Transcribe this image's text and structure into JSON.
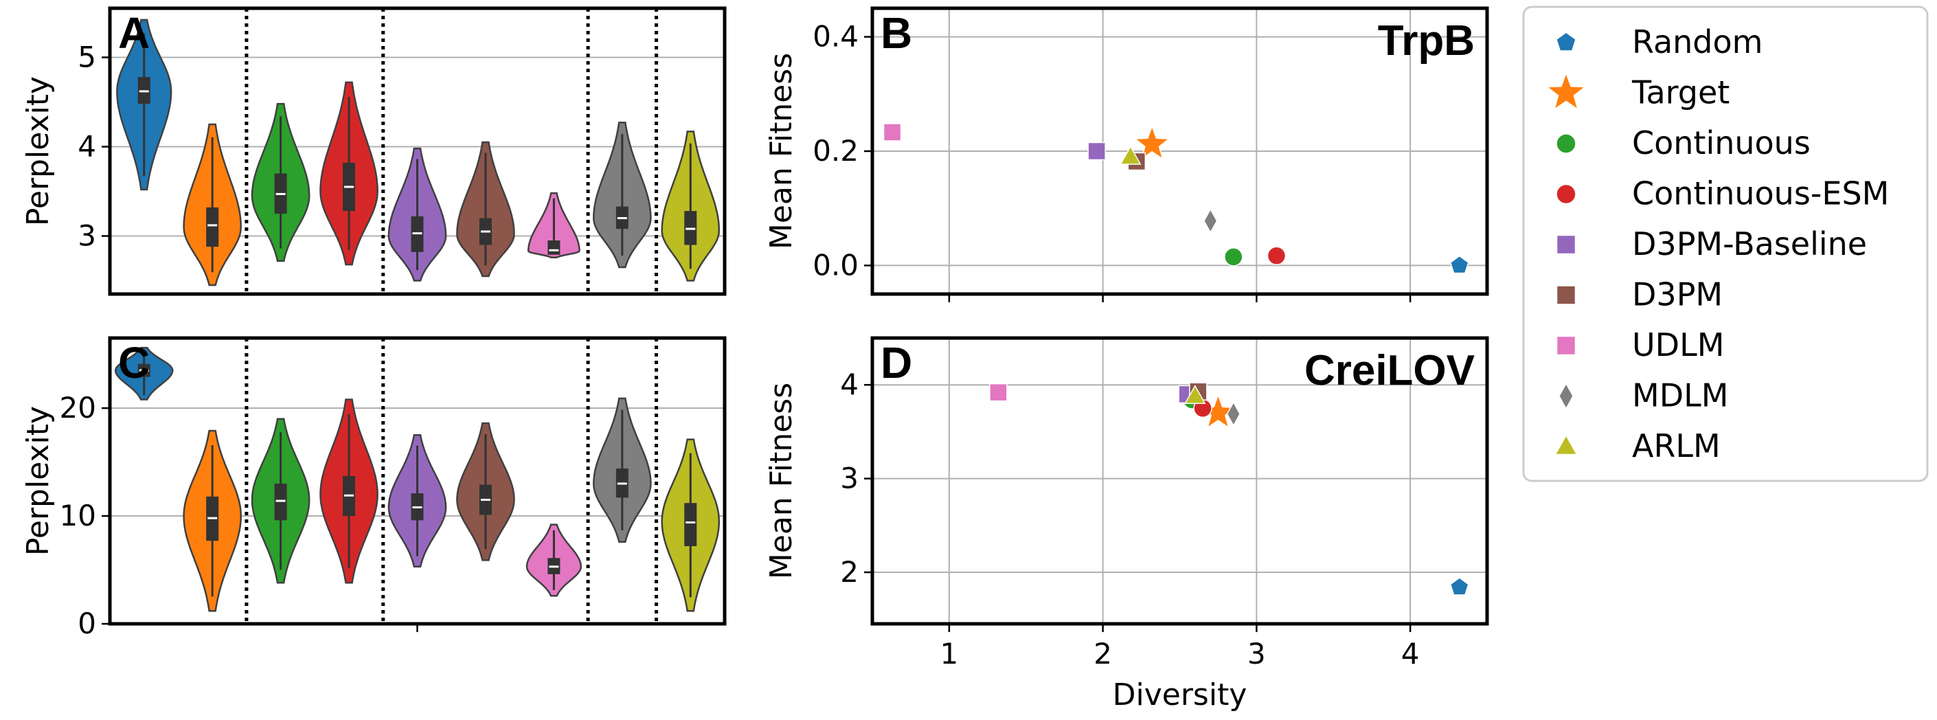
{
  "chart_data": [
    {
      "id": "A",
      "type": "violin",
      "panel_label": "A",
      "ylabel": "Perplexity",
      "ylim": [
        2.35,
        5.55
      ],
      "yticks": [
        3,
        4,
        5
      ],
      "grid": true,
      "separators_after_index": [
        1,
        3,
        6,
        7
      ],
      "violins": [
        {
          "series": "Random",
          "color": "#1f77b4",
          "min": 3.52,
          "max": 5.42,
          "q1": 4.48,
          "median": 4.62,
          "q3": 4.78,
          "mode": 4.62,
          "width": 0.9
        },
        {
          "series": "Target",
          "color": "#ff7f0e",
          "min": 2.45,
          "max": 4.25,
          "q1": 2.88,
          "median": 3.12,
          "q3": 3.32,
          "mode": 3.1,
          "width": 0.95
        },
        {
          "series": "Continuous",
          "color": "#2ca02c",
          "min": 2.72,
          "max": 4.48,
          "q1": 3.25,
          "median": 3.47,
          "q3": 3.7,
          "mode": 3.45,
          "width": 0.95
        },
        {
          "series": "Continuous-ESM",
          "color": "#d62728",
          "min": 2.68,
          "max": 4.72,
          "q1": 3.28,
          "median": 3.55,
          "q3": 3.82,
          "mode": 3.5,
          "width": 0.95
        },
        {
          "series": "D3PM-Baseline",
          "color": "#9467bd",
          "min": 2.5,
          "max": 3.98,
          "q1": 2.82,
          "median": 3.03,
          "q3": 3.22,
          "mode": 3.0,
          "width": 0.95
        },
        {
          "series": "D3PM",
          "color": "#8c564b",
          "min": 2.55,
          "max": 4.05,
          "q1": 2.9,
          "median": 3.05,
          "q3": 3.2,
          "mode": 3.02,
          "width": 0.95
        },
        {
          "series": "UDLM",
          "color": "#e377c2",
          "min": 2.76,
          "max": 3.48,
          "q1": 2.79,
          "median": 2.84,
          "q3": 2.95,
          "mode": 2.83,
          "width": 0.85
        },
        {
          "series": "MDLM",
          "color": "#7f7f7f",
          "min": 2.65,
          "max": 4.27,
          "q1": 3.08,
          "median": 3.2,
          "q3": 3.33,
          "mode": 3.2,
          "width": 0.95
        },
        {
          "series": "ARLM",
          "color": "#bcbd22",
          "min": 2.5,
          "max": 4.17,
          "q1": 2.9,
          "median": 3.08,
          "q3": 3.28,
          "mode": 3.06,
          "width": 0.95
        }
      ]
    },
    {
      "id": "B",
      "type": "scatter",
      "panel_label": "B",
      "title": "TrpB",
      "xlabel": "",
      "ylabel": "Mean Fitness",
      "xlim": [
        0.5,
        4.5
      ],
      "ylim": [
        -0.05,
        0.45
      ],
      "yticks": [
        "0.0",
        "0.2",
        "0.4"
      ],
      "xticks": [
        1,
        2,
        3,
        4
      ],
      "show_xtick_labels": false,
      "grid": true,
      "points": [
        {
          "series": "Random",
          "x": 4.32,
          "y": 0.0
        },
        {
          "series": "Target",
          "x": 2.32,
          "y": 0.212
        },
        {
          "series": "Continuous",
          "x": 2.85,
          "y": 0.015
        },
        {
          "series": "Continuous-ESM",
          "x": 3.13,
          "y": 0.017
        },
        {
          "series": "D3PM-Baseline",
          "x": 1.96,
          "y": 0.2
        },
        {
          "series": "D3PM",
          "x": 2.22,
          "y": 0.182
        },
        {
          "series": "UDLM",
          "x": 0.63,
          "y": 0.233
        },
        {
          "series": "MDLM",
          "x": 2.7,
          "y": 0.078
        },
        {
          "series": "ARLM",
          "x": 2.18,
          "y": 0.19
        }
      ]
    },
    {
      "id": "C",
      "type": "violin",
      "panel_label": "C",
      "ylabel": "Perplexity",
      "ylim": [
        0,
        26.5
      ],
      "yticks": [
        0,
        10,
        20
      ],
      "grid": true,
      "separators_after_index": [
        1,
        3,
        6,
        7
      ],
      "violins": [
        {
          "series": "Random",
          "color": "#1f77b4",
          "min": 20.8,
          "max": 25.6,
          "q1": 22.9,
          "median": 23.5,
          "q3": 24.1,
          "mode": 23.5,
          "width": 0.95
        },
        {
          "series": "Target",
          "color": "#ff7f0e",
          "min": 1.2,
          "max": 17.9,
          "q1": 7.7,
          "median": 9.8,
          "q3": 11.8,
          "mode": 10.0,
          "width": 0.95
        },
        {
          "series": "Continuous",
          "color": "#2ca02c",
          "min": 3.8,
          "max": 19.0,
          "q1": 9.6,
          "median": 11.4,
          "q3": 13.0,
          "mode": 11.5,
          "width": 0.95
        },
        {
          "series": "Continuous-ESM",
          "color": "#d62728",
          "min": 3.8,
          "max": 20.8,
          "q1": 10.0,
          "median": 11.9,
          "q3": 13.7,
          "mode": 12.0,
          "width": 0.95
        },
        {
          "series": "D3PM-Baseline",
          "color": "#9467bd",
          "min": 5.3,
          "max": 17.5,
          "q1": 9.6,
          "median": 10.8,
          "q3": 12.1,
          "mode": 10.8,
          "width": 0.95
        },
        {
          "series": "D3PM",
          "color": "#8c564b",
          "min": 5.9,
          "max": 18.6,
          "q1": 10.1,
          "median": 11.5,
          "q3": 12.9,
          "mode": 11.5,
          "width": 0.95
        },
        {
          "series": "UDLM",
          "color": "#e377c2",
          "min": 2.6,
          "max": 9.2,
          "q1": 4.6,
          "median": 5.3,
          "q3": 6.1,
          "mode": 5.3,
          "width": 0.9
        },
        {
          "series": "MDLM",
          "color": "#7f7f7f",
          "min": 7.6,
          "max": 20.9,
          "q1": 11.7,
          "median": 13.0,
          "q3": 14.4,
          "mode": 13.0,
          "width": 0.95
        },
        {
          "series": "ARLM",
          "color": "#bcbd22",
          "min": 1.2,
          "max": 17.1,
          "q1": 7.2,
          "median": 9.4,
          "q3": 11.2,
          "mode": 9.5,
          "width": 0.95
        }
      ]
    },
    {
      "id": "D",
      "type": "scatter",
      "panel_label": "D",
      "title": "CreiLOV",
      "xlabel": "Diversity",
      "ylabel": "Mean Fitness",
      "xlim": [
        0.5,
        4.5
      ],
      "ylim": [
        1.45,
        4.5
      ],
      "yticks": [
        2,
        3,
        4
      ],
      "xticks": [
        1,
        2,
        3,
        4
      ],
      "show_xtick_labels": true,
      "grid": true,
      "points": [
        {
          "series": "Random",
          "x": 4.32,
          "y": 1.84
        },
        {
          "series": "Target",
          "x": 2.75,
          "y": 3.7
        },
        {
          "series": "Continuous",
          "x": 2.58,
          "y": 3.84
        },
        {
          "series": "Continuous-ESM",
          "x": 2.65,
          "y": 3.75
        },
        {
          "series": "D3PM-Baseline",
          "x": 2.55,
          "y": 3.9
        },
        {
          "series": "D3PM",
          "x": 2.62,
          "y": 3.93
        },
        {
          "series": "UDLM",
          "x": 1.32,
          "y": 3.92
        },
        {
          "series": "MDLM",
          "x": 2.85,
          "y": 3.69
        },
        {
          "series": "ARLM",
          "x": 2.6,
          "y": 3.88
        }
      ]
    }
  ],
  "legend": {
    "placement": "right",
    "items": [
      {
        "label": "Random",
        "color": "#1f77b4",
        "marker": "pentagon"
      },
      {
        "label": "Target",
        "color": "#ff7f0e",
        "marker": "star"
      },
      {
        "label": "Continuous",
        "color": "#2ca02c",
        "marker": "circle"
      },
      {
        "label": "Continuous-ESM",
        "color": "#d62728",
        "marker": "circle"
      },
      {
        "label": "D3PM-Baseline",
        "color": "#9467bd",
        "marker": "square"
      },
      {
        "label": "D3PM",
        "color": "#8c564b",
        "marker": "square"
      },
      {
        "label": "UDLM",
        "color": "#e377c2",
        "marker": "square"
      },
      {
        "label": "MDLM",
        "color": "#7f7f7f",
        "marker": "diamond"
      },
      {
        "label": "ARLM",
        "color": "#bcbd22",
        "marker": "triangle"
      }
    ]
  }
}
